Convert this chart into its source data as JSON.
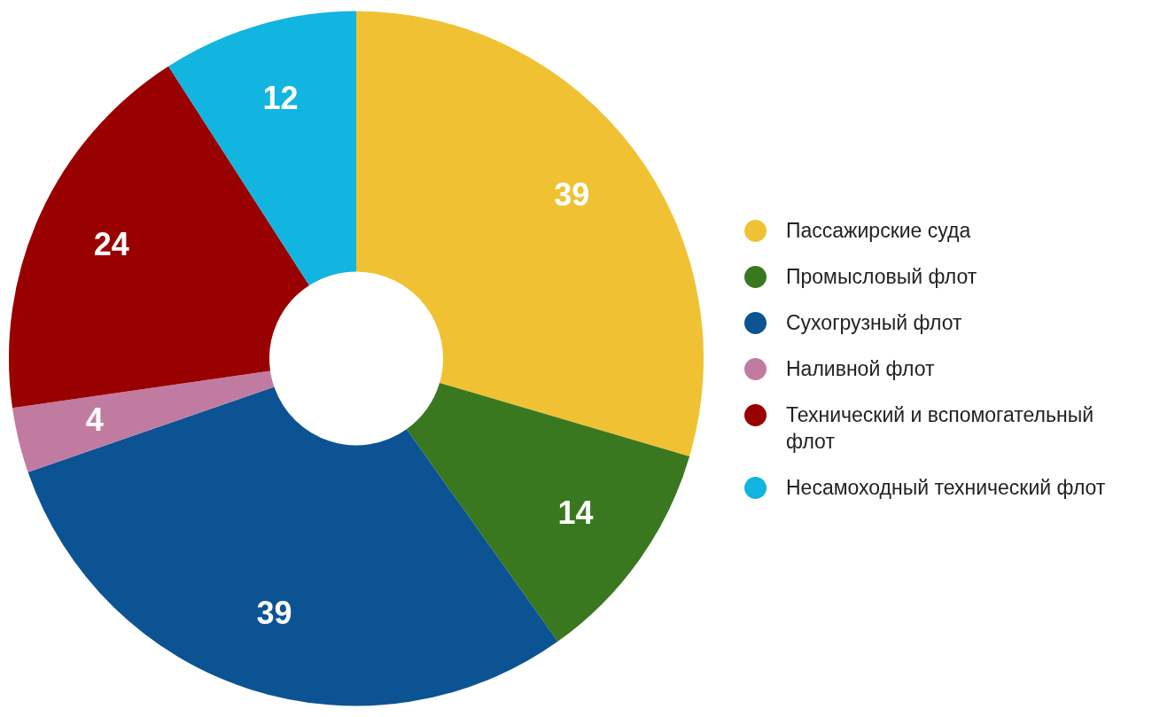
{
  "chart_data": {
    "type": "donut",
    "categories": [
      "Пассажирские суда",
      "Промысловый флот",
      "Сухогрузный флот",
      "Наливной флот",
      "Технический и вспомогательный флот",
      "Несамоходный технический флот"
    ],
    "values": [
      39,
      14,
      39,
      4,
      24,
      12
    ],
    "colors": [
      "#f0c233",
      "#3a7820",
      "#0c5393",
      "#c27ba0",
      "#990000",
      "#12b4e0"
    ],
    "data_labels": true,
    "legend": "right"
  }
}
